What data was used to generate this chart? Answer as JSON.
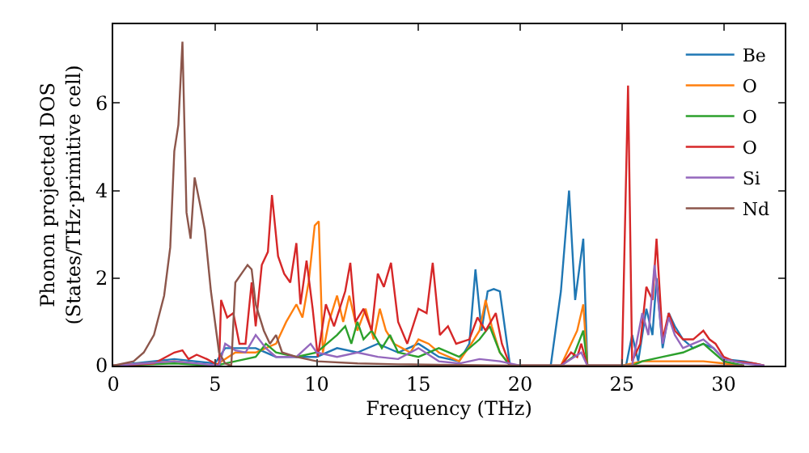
{
  "chart_data": {
    "type": "line",
    "xlabel": "Frequency (THz)",
    "ylabel": "Phonon projected DOS\n(States/THz·primitive cell)",
    "xlim": [
      0,
      33
    ],
    "xticks": [
      0,
      5,
      10,
      15,
      20,
      25,
      30
    ],
    "ylim": [
      0,
      7.8
    ],
    "yticks": [
      0,
      2,
      4,
      6
    ],
    "grid": false,
    "legend": "top right",
    "marker": "none",
    "line_style": "solid",
    "series": [
      {
        "name": "Be",
        "color": "#1f77b4",
        "x": [
          0,
          3,
          5,
          5.5,
          7,
          8,
          10,
          11,
          12,
          13,
          14,
          15,
          16,
          17,
          17.5,
          17.8,
          18.1,
          18.4,
          18.7,
          19,
          19.5,
          21.5,
          22,
          22.4,
          22.7,
          23.1,
          23.3,
          25.2,
          25.5,
          25.8,
          26.2,
          26.5,
          26.7,
          27,
          27.3,
          27.6,
          28,
          28.5,
          29,
          29.5,
          30,
          31,
          32
        ],
        "values": [
          0,
          0.15,
          0.05,
          0.4,
          0.4,
          0.2,
          0.2,
          0.4,
          0.3,
          0.5,
          0.3,
          0.5,
          0.2,
          0.1,
          0.5,
          2.2,
          0.8,
          1.7,
          1.75,
          1.7,
          0,
          0,
          1.7,
          4.0,
          1.5,
          2.9,
          0,
          0,
          0.7,
          0.1,
          1.3,
          0.7,
          2.0,
          0.4,
          1.2,
          0.9,
          0.6,
          0.4,
          0.5,
          0.4,
          0.15,
          0.1,
          0
        ]
      },
      {
        "name": "O",
        "color": "#ff7f0e",
        "x": [
          0,
          3,
          5,
          6,
          7,
          8,
          8.5,
          9,
          9.3,
          9.6,
          9.9,
          10.1,
          10.3,
          10.6,
          11,
          11.3,
          11.6,
          12,
          12.4,
          12.8,
          13.1,
          13.4,
          13.8,
          14.2,
          14.6,
          15,
          15.5,
          16,
          17,
          17.6,
          18,
          18.3,
          18.6,
          19,
          19.5,
          22,
          22.4,
          22.8,
          23.1,
          23.3,
          25,
          26,
          27,
          28,
          29,
          30,
          31
        ],
        "values": [
          0,
          0.1,
          0,
          0.3,
          0.3,
          0.5,
          1.0,
          1.4,
          1.1,
          1.9,
          3.2,
          3.3,
          0.3,
          1.0,
          1.6,
          1.0,
          1.6,
          0.8,
          1.3,
          0.6,
          1.3,
          0.8,
          0.5,
          0.4,
          0.3,
          0.6,
          0.5,
          0.3,
          0.1,
          0.5,
          0.8,
          1.5,
          0.9,
          0.3,
          0,
          0,
          0.4,
          0.8,
          1.4,
          0,
          0,
          0.1,
          0.1,
          0.1,
          0.1,
          0.05,
          0
        ]
      },
      {
        "name": "O",
        "color": "#2ca02c",
        "x": [
          0,
          3,
          5,
          6,
          7,
          7.5,
          8,
          9,
          10,
          10.5,
          11,
          11.4,
          11.7,
          12,
          12.3,
          12.7,
          13.2,
          13.6,
          14,
          15,
          16,
          17,
          18,
          18.5,
          19,
          19.5,
          22,
          22.6,
          23.1,
          23.3,
          25.5,
          26,
          27,
          28,
          28.5,
          29,
          29.5,
          30,
          31
        ],
        "values": [
          0,
          0.05,
          0,
          0.1,
          0.2,
          0.5,
          0.3,
          0.2,
          0.3,
          0.5,
          0.7,
          0.9,
          0.5,
          1.0,
          0.6,
          0.8,
          0.4,
          0.7,
          0.3,
          0.2,
          0.4,
          0.2,
          0.6,
          0.9,
          0.3,
          0,
          0,
          0.2,
          0.8,
          0,
          0,
          0.1,
          0.2,
          0.3,
          0.4,
          0.5,
          0.3,
          0.1,
          0
        ]
      },
      {
        "name": "O",
        "color": "#d62728",
        "x": [
          0,
          2,
          3,
          3.4,
          3.7,
          4.1,
          4.6,
          5.2,
          5.3,
          5.6,
          5.9,
          6.2,
          6.5,
          6.8,
          7.0,
          7.3,
          7.6,
          7.8,
          8.1,
          8.4,
          8.7,
          9.0,
          9.2,
          9.5,
          9.8,
          10.05,
          10.45,
          10.85,
          11.4,
          11.65,
          11.9,
          12.3,
          12.7,
          13.0,
          13.3,
          13.65,
          14.0,
          14.45,
          15.0,
          15.4,
          15.7,
          16.05,
          16.45,
          16.85,
          17.5,
          17.9,
          18.3,
          18.8,
          19.1,
          19.5,
          22,
          22.5,
          22.8,
          23.0,
          23.3,
          25,
          25.3,
          25.5,
          25.9,
          26.2,
          26.5,
          26.7,
          27,
          27.3,
          27.6,
          28,
          28.5,
          29,
          29.3,
          29.6,
          30,
          30.5,
          31.5,
          32
        ],
        "values": [
          0,
          0.05,
          0.3,
          0.35,
          0.15,
          0.25,
          0.15,
          0,
          1.5,
          1.1,
          1.2,
          0.5,
          0.5,
          1.9,
          0.9,
          2.3,
          2.6,
          3.9,
          2.5,
          2.1,
          1.9,
          2.8,
          1.4,
          2.4,
          1.3,
          0.2,
          1.4,
          0.9,
          1.7,
          2.35,
          1.0,
          1.3,
          0.8,
          2.1,
          1.8,
          2.35,
          1.0,
          0.5,
          1.3,
          1.2,
          2.35,
          0.7,
          0.9,
          0.5,
          0.6,
          1.1,
          0.8,
          1.2,
          0.5,
          0,
          0,
          0.3,
          0.2,
          0.5,
          0,
          0,
          6.4,
          0.1,
          0.5,
          1.8,
          1.5,
          2.9,
          0.6,
          1.2,
          0.8,
          0.6,
          0.6,
          0.8,
          0.6,
          0.5,
          0.2,
          0.1,
          0.05,
          0
        ]
      },
      {
        "name": "Si",
        "color": "#9467bd",
        "x": [
          0,
          3,
          5.2,
          5.5,
          6,
          6.5,
          7,
          7.5,
          8,
          9,
          9.7,
          10,
          11,
          12,
          13,
          14,
          15,
          16,
          17,
          18,
          19,
          20,
          22,
          23,
          23.3,
          25.5,
          26,
          26.3,
          26.6,
          27,
          27.3,
          27.6,
          28,
          28.5,
          29,
          29.5,
          30,
          31,
          32
        ],
        "values": [
          0,
          0.1,
          0,
          0.5,
          0.35,
          0.3,
          0.7,
          0.4,
          0.2,
          0.2,
          0.5,
          0.3,
          0.2,
          0.3,
          0.2,
          0.15,
          0.4,
          0.1,
          0.05,
          0.15,
          0.1,
          0,
          0,
          0.3,
          0,
          0,
          1.2,
          0.7,
          2.3,
          0.5,
          1.1,
          0.7,
          0.4,
          0.5,
          0.6,
          0.4,
          0.15,
          0.05,
          0
        ]
      },
      {
        "name": "Nd",
        "color": "#8c564b",
        "x": [
          0,
          1,
          1.5,
          2,
          2.5,
          2.8,
          3,
          3.2,
          3.4,
          3.6,
          3.8,
          4,
          4.3,
          4.5,
          4.8,
          5.2,
          5.5,
          5.8,
          6,
          6.3,
          6.6,
          6.8,
          7,
          7.4,
          7.7,
          8,
          8.3,
          9,
          10,
          12,
          14,
          16,
          20,
          22,
          25,
          28,
          31
        ],
        "values": [
          0,
          0.1,
          0.3,
          0.7,
          1.6,
          2.7,
          4.9,
          5.5,
          7.4,
          3.5,
          2.9,
          4.3,
          3.6,
          3.1,
          1.7,
          0.3,
          0.05,
          0,
          1.9,
          2.1,
          2.3,
          2.2,
          1.4,
          0.8,
          0.5,
          0.7,
          0.3,
          0.2,
          0.1,
          0.05,
          0.03,
          0.02,
          0,
          0,
          0,
          0,
          0
        ]
      }
    ]
  }
}
